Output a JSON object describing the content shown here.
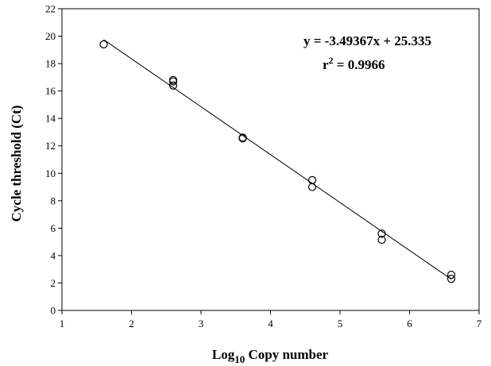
{
  "chart_data": {
    "type": "scatter",
    "xlabel_main": "Log",
    "xlabel_sub": "10",
    "xlabel_rest": " Copy number",
    "ylabel": "Cycle threshold (Ct)",
    "xlim": [
      1,
      7
    ],
    "ylim": [
      0,
      22
    ],
    "x_ticks": [
      1,
      2,
      3,
      4,
      5,
      6,
      7
    ],
    "y_ticks": [
      0,
      2,
      4,
      6,
      8,
      10,
      12,
      14,
      16,
      18,
      20,
      22
    ],
    "grid": false,
    "points": [
      {
        "x": 1.6,
        "y": 19.4
      },
      {
        "x": 2.6,
        "y": 16.8
      },
      {
        "x": 2.6,
        "y": 16.7
      },
      {
        "x": 2.6,
        "y": 16.4
      },
      {
        "x": 3.6,
        "y": 12.6
      },
      {
        "x": 3.6,
        "y": 12.55
      },
      {
        "x": 4.6,
        "y": 9.5
      },
      {
        "x": 4.6,
        "y": 9.0
      },
      {
        "x": 5.6,
        "y": 5.6
      },
      {
        "x": 5.6,
        "y": 5.15
      },
      {
        "x": 6.6,
        "y": 2.6
      },
      {
        "x": 6.6,
        "y": 2.3
      }
    ],
    "fit_line": {
      "slope": -3.49367,
      "intercept": 25.335,
      "x_range": [
        1.6,
        6.6
      ]
    },
    "equation_text": "y = -3.49367x + 25.335",
    "r2_label": "r",
    "r2_sup": "2",
    "r2_value": " = 0.9966"
  }
}
